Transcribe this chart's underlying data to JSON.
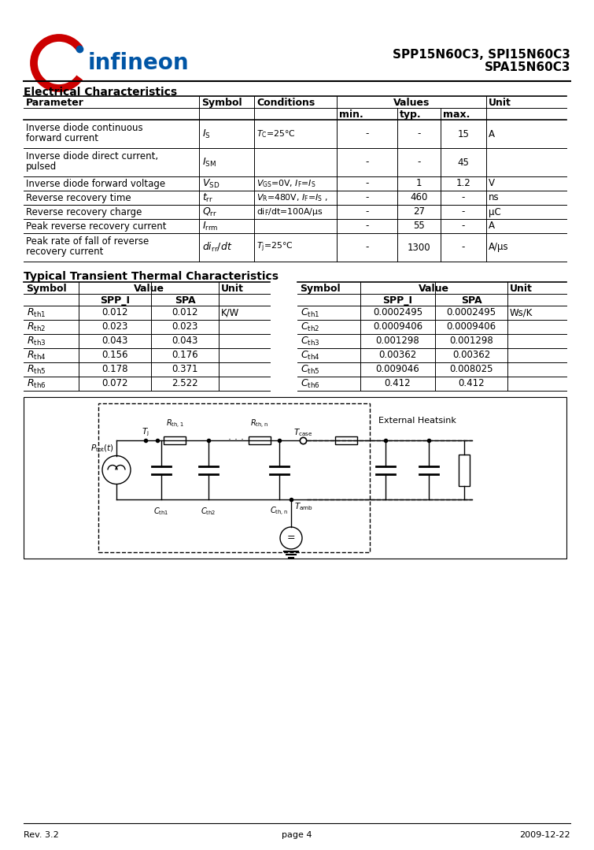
{
  "title_line1": "SPP15N60C3, SPI15N60C3",
  "title_line2": "SPA15N60C3",
  "section1_title": "Electrical Characteristics",
  "section2_title": "Typical Transient Thermal Characteristics",
  "left_data": [
    [
      "R_th1",
      "0.012",
      "0.012",
      "K/W"
    ],
    [
      "R_th2",
      "0.023",
      "0.023",
      ""
    ],
    [
      "R_th3",
      "0.043",
      "0.043",
      ""
    ],
    [
      "R_th4",
      "0.156",
      "0.176",
      ""
    ],
    [
      "R_th5",
      "0.178",
      "0.371",
      ""
    ],
    [
      "R_th6",
      "0.072",
      "2.522",
      ""
    ]
  ],
  "right_data": [
    [
      "C_th1",
      "0.0002495",
      "0.0002495",
      "Ws/K"
    ],
    [
      "C_th2",
      "0.0009406",
      "0.0009406",
      ""
    ],
    [
      "C_th3",
      "0.001298",
      "0.001298",
      ""
    ],
    [
      "C_th4",
      "0.00362",
      "0.00362",
      ""
    ],
    [
      "C_th5",
      "0.009046",
      "0.008025",
      ""
    ],
    [
      "C_th6",
      "0.412",
      "0.412",
      ""
    ]
  ],
  "footer_left": "Rev. 3.2",
  "footer_center": "page 4",
  "footer_right": "2009-12-22"
}
